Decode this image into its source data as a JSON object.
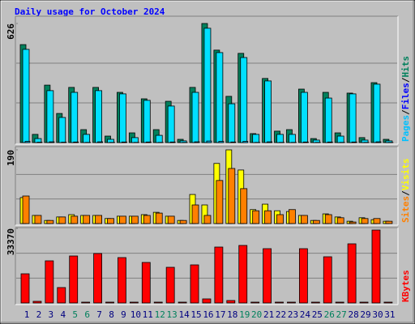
{
  "chart_data": {
    "type": "bar",
    "title": "Daily usage for October 2024",
    "categories": [
      "1",
      "2",
      "3",
      "4",
      "5",
      "6",
      "7",
      "8",
      "9",
      "10",
      "11",
      "12",
      "13",
      "14",
      "15",
      "16",
      "17",
      "18",
      "19",
      "20",
      "21",
      "22",
      "23",
      "24",
      "25",
      "26",
      "27",
      "28",
      "29",
      "30",
      "31"
    ],
    "weekends": [
      "5",
      "6",
      "12",
      "13",
      "19",
      "20",
      "26",
      "27"
    ],
    "weekend_color": "#00805c",
    "category_color": "#000080",
    "legend_separator": "/",
    "panels": [
      {
        "ylim": [
          0,
          626
        ],
        "yticks": [
          626
        ],
        "series": [
          {
            "name": "Hits",
            "color": "#00805c",
            "label_color": "#00805c",
            "values": [
              515,
              43,
              302,
              153,
              290,
              68,
              290,
              34,
              264,
              51,
              230,
              68,
              217,
              17,
              290,
              626,
              486,
              243,
              469,
              47,
              337,
              60,
              68,
              281,
              21,
              264,
              51,
              260,
              26,
              315,
              17
            ]
          },
          {
            "name": "Files",
            "color": "#00e0ff",
            "label_color": "#0000ff",
            "values": [
              490,
              21,
              273,
              132,
              264,
              43,
              273,
              17,
              256,
              26,
              222,
              38,
              192,
              9,
              264,
              601,
              473,
              204,
              447,
              43,
              324,
              43,
              43,
              264,
              13,
              234,
              34,
              256,
              13,
              307,
              9
            ]
          },
          {
            "name": "Pages",
            "color": "#00c0ff",
            "label_color": "#00c0ff",
            "values": [
              6,
              2,
              4,
              2,
              3,
              1,
              4,
              1,
              3,
              1,
              3,
              1,
              3,
              1,
              4,
              8,
              6,
              3,
              6,
              1,
              4,
              1,
              1,
              3,
              1,
              3,
              1,
              3,
              1,
              4,
              1
            ]
          }
        ]
      },
      {
        "ylim": [
          0,
          190
        ],
        "yticks": [
          190
        ],
        "series": [
          {
            "name": "Visits",
            "color": "#ffff00",
            "label_color": "#ffff00",
            "values": [
              67,
              21,
              8,
              17,
              23,
              21,
              21,
              13,
              19,
              19,
              23,
              29,
              19,
              8,
              75,
              48,
              155,
              190,
              138,
              36,
              50,
              33,
              31,
              21,
              8,
              25,
              17,
              6,
              15,
              10,
              6
            ]
          },
          {
            "name": "Sites",
            "color": "#ff8000",
            "label_color": "#ff8000",
            "values": [
              71,
              21,
              8,
              17,
              19,
              21,
              21,
              13,
              19,
              19,
              21,
              27,
              19,
              8,
              48,
              21,
              111,
              142,
              90,
              33,
              33,
              23,
              36,
              21,
              8,
              23,
              15,
              4,
              13,
              13,
              6
            ]
          }
        ]
      },
      {
        "ylim": [
          0,
          33370
        ],
        "yticks": [
          33370
        ],
        "series": [
          {
            "name": "KBytes",
            "color": "#ff0000",
            "label_color": "#ff0000",
            "values": [
              13057,
              725,
              18860,
              6891,
              21037,
              363,
              22125,
              363,
              20312,
              363,
              18135,
              363,
              15959,
              363,
              17047,
              1813,
              25026,
              1088,
              25751,
              363,
              24301,
              363,
              363,
              24301,
              363,
              20674,
              363,
              26477,
              363,
              32644,
              363
            ]
          }
        ]
      }
    ]
  }
}
